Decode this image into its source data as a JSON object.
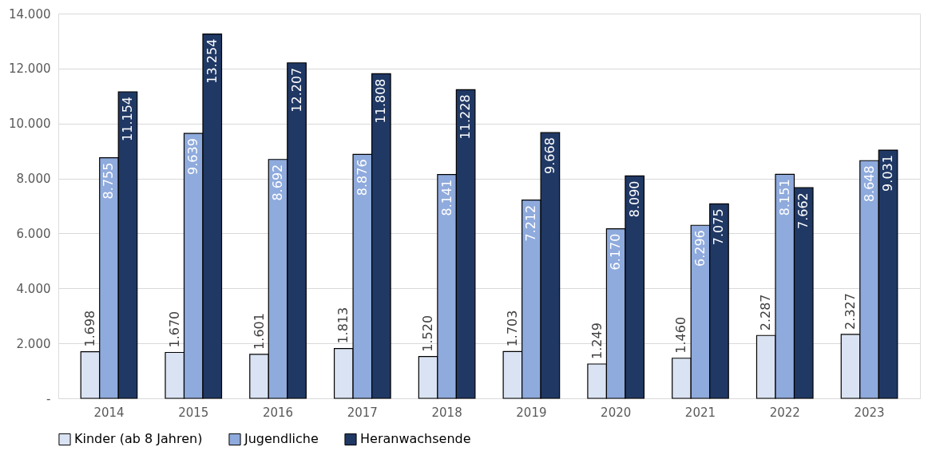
{
  "chart_data": {
    "type": "bar",
    "categories": [
      "2014",
      "2015",
      "2016",
      "2017",
      "2018",
      "2019",
      "2020",
      "2021",
      "2022",
      "2023"
    ],
    "series": [
      {
        "name": "Kinder (ab 8 Jahren)",
        "color": "#dae3f3",
        "values": [
          1698,
          1670,
          1601,
          1813,
          1520,
          1703,
          1249,
          1460,
          2287,
          2327
        ],
        "value_labels": [
          "1.698",
          "1.670",
          "1.601",
          "1.813",
          "1.520",
          "1.703",
          "1.249",
          "1.460",
          "2.287",
          "2.327"
        ]
      },
      {
        "name": "Jugendliche",
        "color": "#8faadc",
        "values": [
          8755,
          9639,
          8692,
          8876,
          8141,
          7212,
          6170,
          6296,
          8151,
          8648
        ],
        "value_labels": [
          "8.755",
          "9.639",
          "8.692",
          "8.876",
          "8.141",
          "7.212",
          "6.170",
          "6.296",
          "8.151",
          "8.648"
        ]
      },
      {
        "name": "Heranwachsende",
        "color": "#203864",
        "values": [
          11154,
          13254,
          12207,
          11808,
          11228,
          9668,
          8090,
          7075,
          7662,
          9031
        ],
        "value_labels": [
          "11.154",
          "13.254",
          "12.207",
          "11.808",
          "11.228",
          "9.668",
          "8.090",
          "7.075",
          "7.662",
          "9.031"
        ]
      }
    ],
    "ylim": [
      0,
      14000
    ],
    "yticks": [
      {
        "value": 0,
        "label": "-"
      },
      {
        "value": 2000,
        "label": "2.000"
      },
      {
        "value": 4000,
        "label": "4.000"
      },
      {
        "value": 6000,
        "label": "6.000"
      },
      {
        "value": 8000,
        "label": "8.000"
      },
      {
        "value": 10000,
        "label": "10.000"
      },
      {
        "value": 12000,
        "label": "12.000"
      },
      {
        "value": 14000,
        "label": "14.000"
      }
    ],
    "grid": "y",
    "legend": "bottom"
  }
}
